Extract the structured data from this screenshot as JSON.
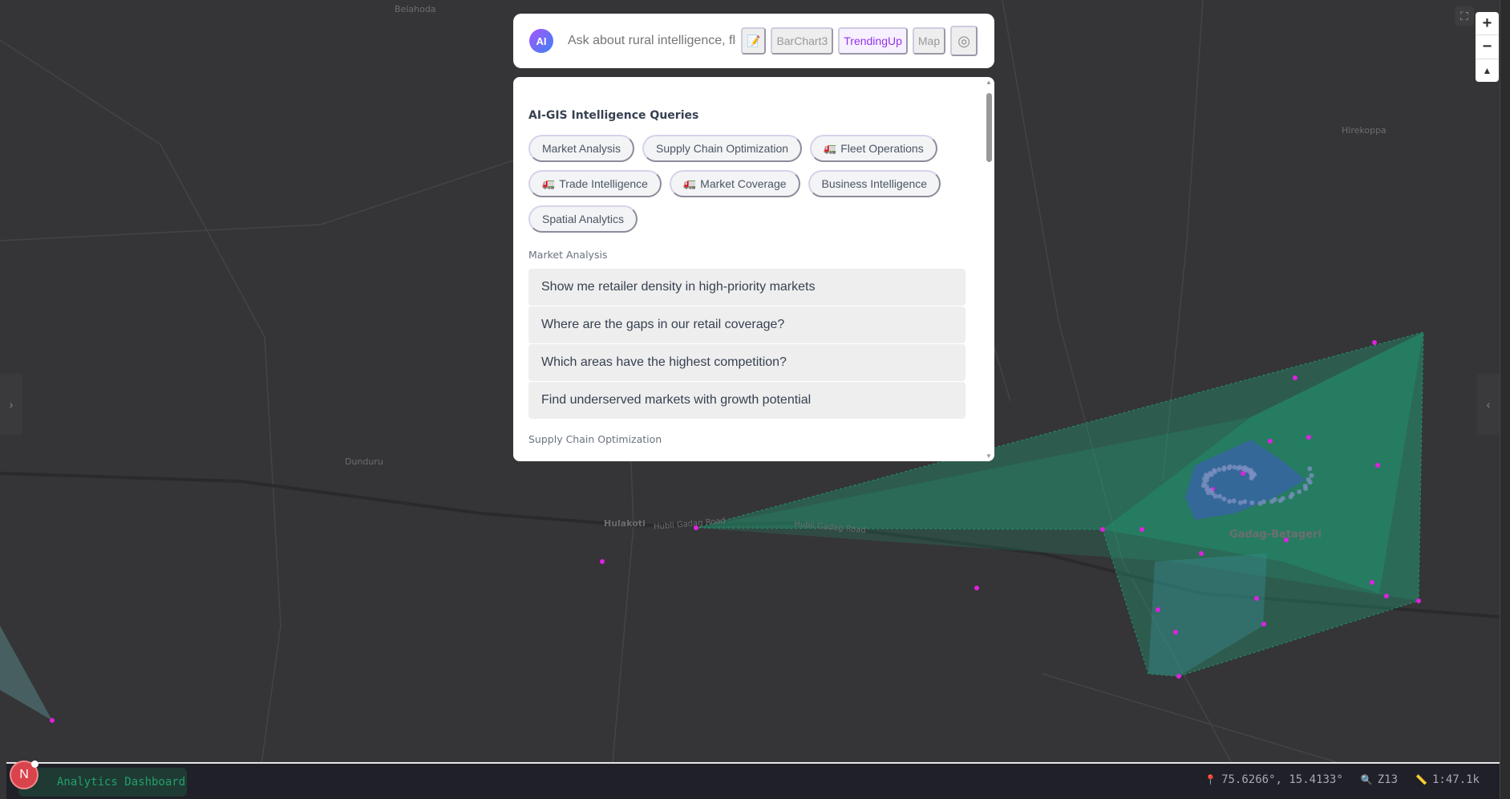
{
  "map": {
    "labels": {
      "belahoda": "Belahoda",
      "hirekoppa": "Hirekoppa",
      "dunduru": "Dunduru",
      "hulakoti": "Hulakoti",
      "road1": "Hubli Gadag Road",
      "road2": "Hubli Gadag Road",
      "city": "Gadag-Betageri"
    },
    "colors": {
      "coverage": "#1fa67a",
      "cluster": "#3b5fb0",
      "outlet": "#e020e0",
      "background": "#353537"
    }
  },
  "search": {
    "badge": "AI",
    "placeholder": "Ask about rural intelligence, fleet",
    "buttons": {
      "notes_icon": "📝",
      "barchart": "BarChart3",
      "trending": "TrendingUp",
      "map": "Map",
      "target_icon": "◎"
    }
  },
  "panel": {
    "title": "AI-GIS Intelligence Queries",
    "chips": [
      {
        "label": "Market Analysis",
        "icon": ""
      },
      {
        "label": "Supply Chain Optimization",
        "icon": ""
      },
      {
        "label": "Fleet Operations",
        "icon": "🚛"
      },
      {
        "label": "Trade Intelligence",
        "icon": "🚛"
      },
      {
        "label": "Market Coverage",
        "icon": "🚛"
      },
      {
        "label": "Business Intelligence",
        "icon": ""
      },
      {
        "label": "Spatial Analytics",
        "icon": ""
      }
    ],
    "section1": "Market Analysis",
    "queries": [
      "Show me retailer density in high-priority markets",
      "Where are the gaps in our retail coverage?",
      "Which areas have the highest competition?",
      "Find underserved markets with growth potential"
    ],
    "section2": "Supply Chain Optimization"
  },
  "controls": {
    "zoom_in": "+",
    "zoom_out": "−",
    "compass": "▲",
    "fullscreen": "⛶",
    "left_handle": "›",
    "right_handle": "‹"
  },
  "bottom": {
    "badge": "N",
    "dashboard": "Analytics Dashboard",
    "coords": "75.6266°, 15.4133°",
    "zoom": "Z13",
    "scale": "1:47.1k",
    "pin_icon": "📍",
    "search_icon": "🔍",
    "ruler_icon": "📏"
  }
}
